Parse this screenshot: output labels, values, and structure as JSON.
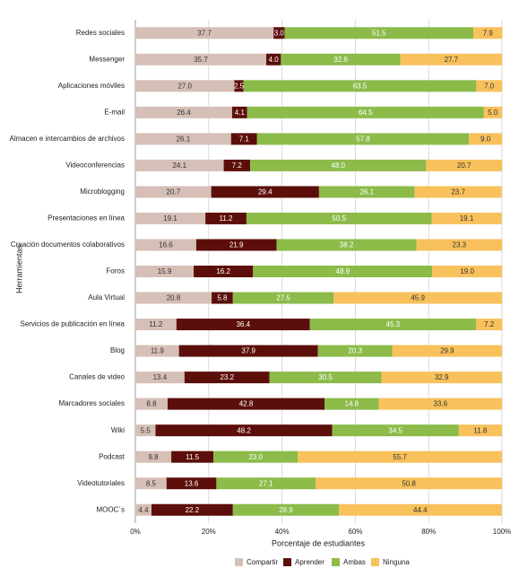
{
  "chart_data": {
    "type": "stacked_barh",
    "x_label": "Porcentaje de estudiantes",
    "y_label": "Herramientas",
    "categories": [
      "Redes sociales",
      "Messenger",
      "Aplicaciones móviles",
      "E-mail",
      "Almacen e intercambios de archivos",
      "Videoconferencias",
      "Microblogging",
      "Presentaciones en línea",
      "Creación documentos colaborativos",
      "Foros",
      "Aula Virtual",
      "Servicios de publicación en línea",
      "Blog",
      "Canales de video",
      "Marcadores sociales",
      "Wiki",
      "Podcast",
      "Videotutoriales",
      "MOOC´s"
    ],
    "series": [
      {
        "name": "Compartir",
        "color": "#d5bfb6",
        "values": [
          37.7,
          35.7,
          27.0,
          26.4,
          26.1,
          24.1,
          20.7,
          19.1,
          16.6,
          15.9,
          20.8,
          11.2,
          11.9,
          13.4,
          8.8,
          5.5,
          9.8,
          8.5,
          4.4
        ],
        "value_labels": [
          "37.7",
          "35.7",
          "27.0",
          "26.4",
          "26.1",
          "24.1",
          "20.7",
          "19.1",
          "16.6",
          "15.9",
          "20.8",
          "11.2",
          "11.9",
          "13.4",
          "8.8",
          "5.5",
          "9.8",
          "8.5",
          "4.4"
        ]
      },
      {
        "name": "Aprender",
        "color": "#5c0f0a",
        "values": [
          3.0,
          4.0,
          2.5,
          4.1,
          7.1,
          7.2,
          29.4,
          11.2,
          21.9,
          16.2,
          5.8,
          36.4,
          37.9,
          23.2,
          42.8,
          48.2,
          11.5,
          13.6,
          22.2
        ],
        "value_labels": [
          "3.0",
          "4.0",
          "2.5",
          "4.1",
          "7.1",
          "7.2",
          "29.4",
          "11.2",
          "21.9",
          "16.2",
          "5.8",
          "36.4",
          "37.9",
          "23.2",
          "42.8",
          "48.2",
          "11.5",
          "13.6",
          "22.2"
        ]
      },
      {
        "name": "Ambas",
        "color": "#8cbb4a",
        "values": [
          51.5,
          32.6,
          63.5,
          64.5,
          57.8,
          48.0,
          26.1,
          50.5,
          38.2,
          48.9,
          27.5,
          45.3,
          20.3,
          30.5,
          14.8,
          34.5,
          23.0,
          27.1,
          28.9
        ],
        "value_labels": [
          "51.5",
          "32.6",
          "63.5",
          "64.5",
          "57.8",
          "48.0",
          "26.1",
          "50.5",
          "38.2",
          "48.9",
          "27.5",
          "45.3",
          "20.3",
          "30.5",
          "14.8",
          "34.5",
          "23.0",
          "27.1",
          "28.9"
        ]
      },
      {
        "name": "Ninguna",
        "color": "#f8c15c",
        "values": [
          7.9,
          27.7,
          7.0,
          5.0,
          9.0,
          20.7,
          23.7,
          19.1,
          23.3,
          19.0,
          45.9,
          7.2,
          29.9,
          32.9,
          33.6,
          11.8,
          55.7,
          50.8,
          44.4
        ],
        "value_labels": [
          "7.9",
          "27.7",
          "7.0",
          "5.0",
          "9.0",
          "20.7",
          "23.7",
          "19.1",
          "23.3",
          "19.0",
          "45.9",
          "7.2",
          "29.9",
          "32.9",
          "33.6",
          "11.8",
          "55.7",
          "50.8",
          "44.4"
        ]
      }
    ],
    "xlim": [
      0,
      100
    ],
    "xticks": [
      {
        "value": 0,
        "label": "0%"
      },
      {
        "value": 20,
        "label": "20%"
      },
      {
        "value": 40,
        "label": "40%"
      },
      {
        "value": 60,
        "label": "60%"
      },
      {
        "value": 80,
        "label": "80%"
      },
      {
        "value": 100,
        "label": "100%"
      }
    ],
    "grid": true,
    "legend": "bottom"
  }
}
